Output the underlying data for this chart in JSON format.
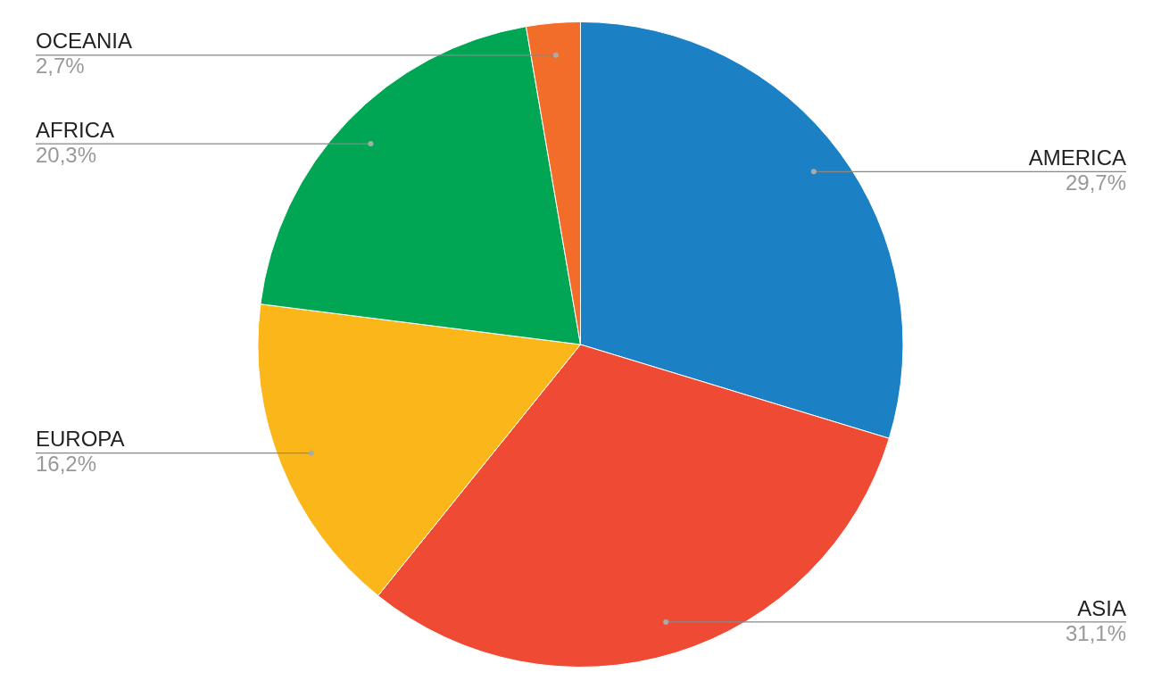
{
  "chart_data": {
    "type": "pie",
    "categories": [
      "AMERICA",
      "ASIA",
      "EUROPA",
      "AFRICA",
      "OCEANIA"
    ],
    "values": [
      29.7,
      31.1,
      16.2,
      20.3,
      2.7
    ],
    "colors": [
      "#1c80c4",
      "#ef4a33",
      "#fbb71a",
      "#00a653",
      "#f26c2a"
    ],
    "value_labels": [
      "29,7%",
      "31,1%",
      "16,2%",
      "20,3%",
      "2,7%"
    ],
    "legend": false
  }
}
